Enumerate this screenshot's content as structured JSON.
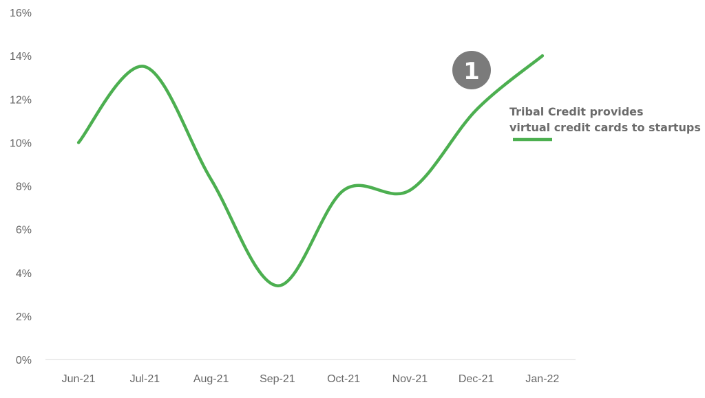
{
  "chart_data": {
    "type": "line",
    "x": [
      "Jun-21",
      "Jul-21",
      "Aug-21",
      "Sep-21",
      "Oct-21",
      "Nov-21",
      "Dec-21",
      "Jan-22"
    ],
    "series": [
      {
        "values": [
          10.0,
          13.5,
          8.3,
          3.4,
          7.8,
          7.8,
          11.5,
          14.0
        ]
      }
    ],
    "y_ticks": [
      "0%",
      "2%",
      "4%",
      "6%",
      "8%",
      "10%",
      "12%",
      "14%",
      "16%"
    ],
    "ylim": [
      0,
      16
    ],
    "y_unit": "%",
    "grid": false,
    "line_color": "#4caf50",
    "annotation": {
      "badge": "1",
      "badge_color": "#7b7b7b",
      "lines": [
        "Tribal Credit provides",
        "virtual credit cards to startups"
      ],
      "color": "#4caf50"
    }
  }
}
